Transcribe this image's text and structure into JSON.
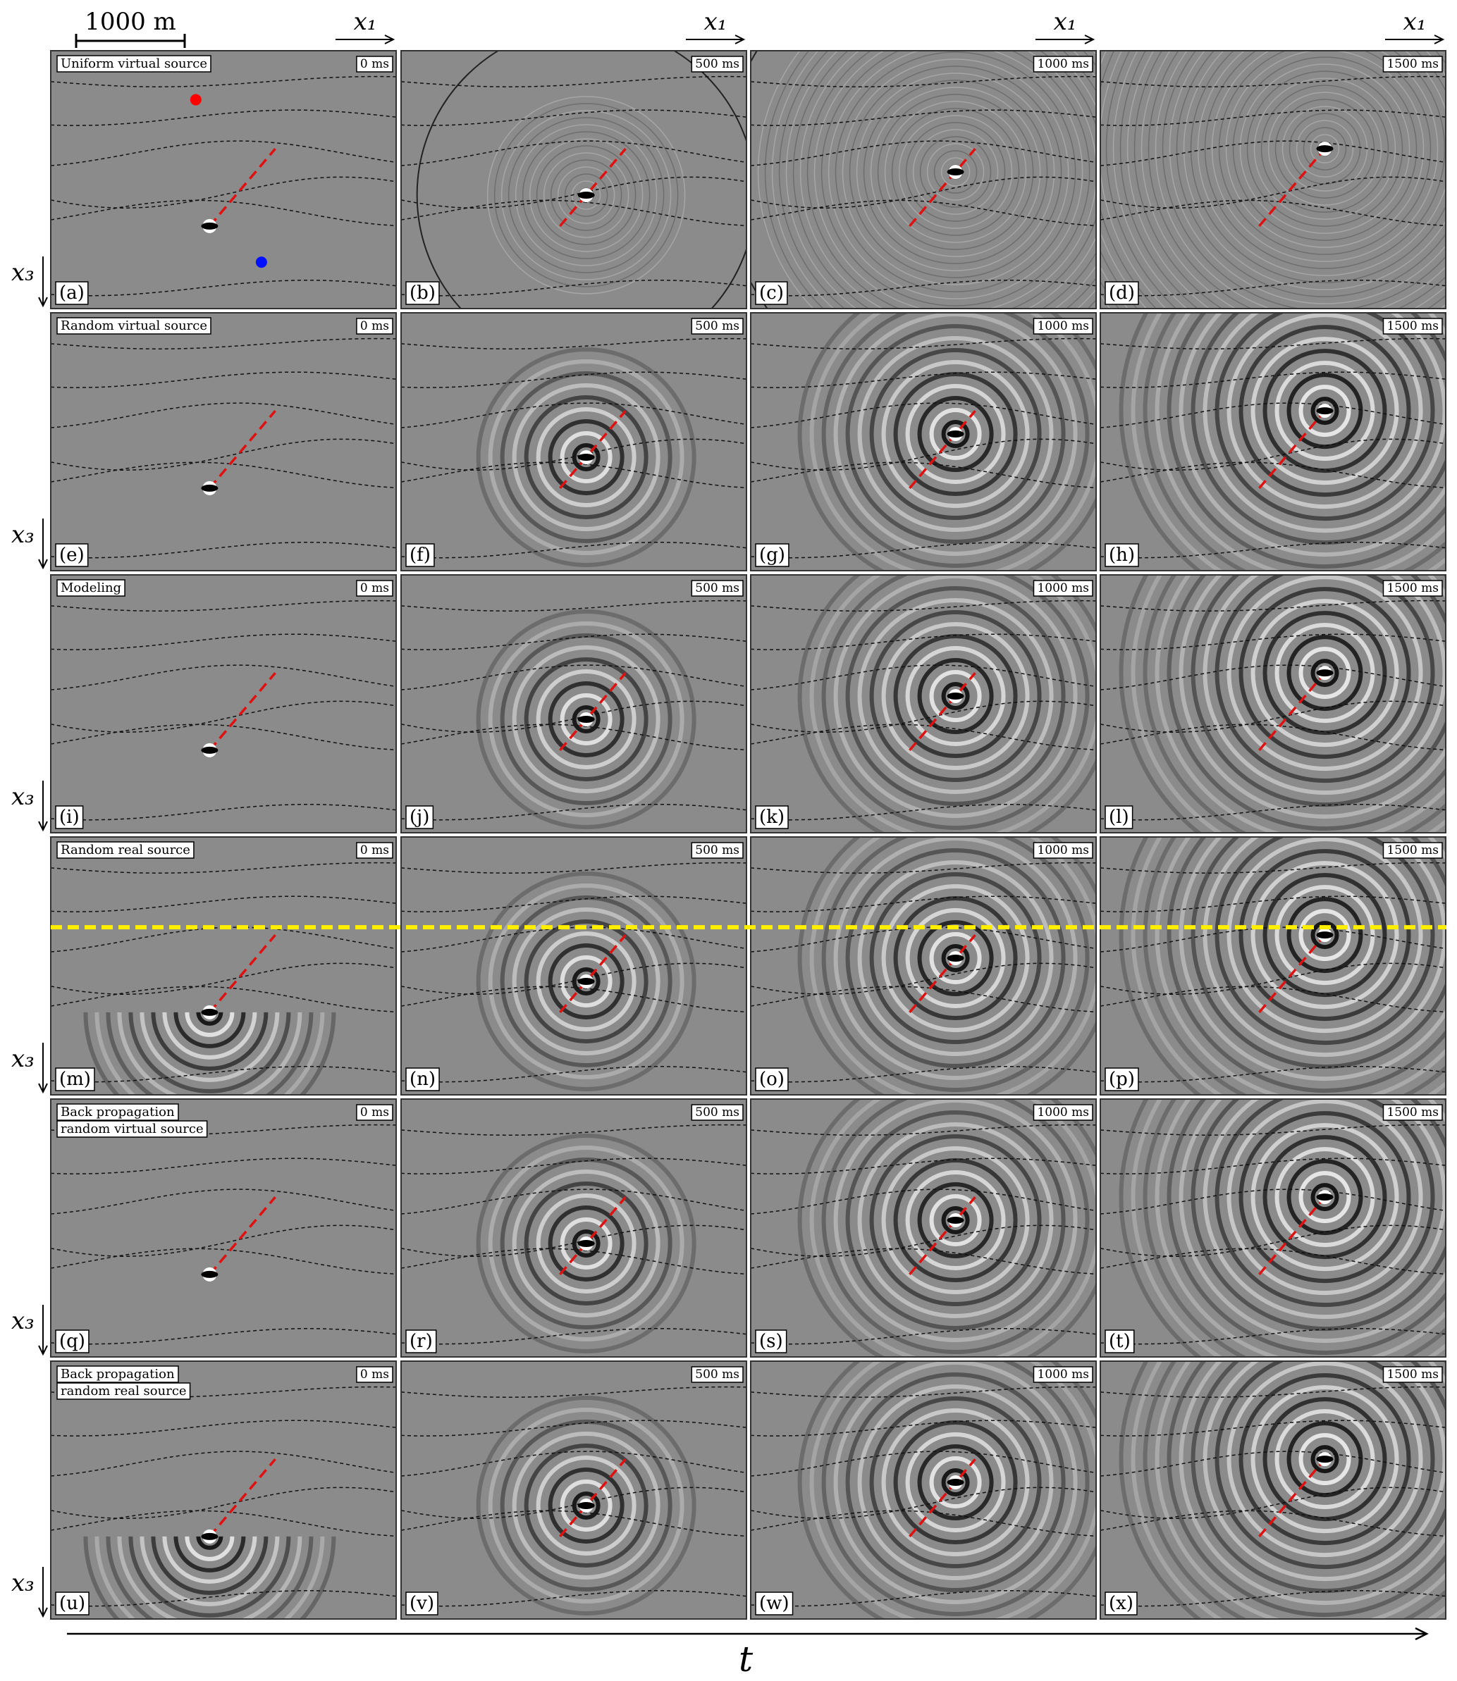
{
  "scale_bar": "1000 m",
  "x_axis_label": "x₁",
  "z_axis_label": "x₃",
  "time_axis_label": "t",
  "times": [
    "0 ms",
    "500 ms",
    "1000 ms",
    "1500 ms"
  ],
  "rows": [
    {
      "title": [
        "Uniform virtual source"
      ],
      "panels": [
        "(a)",
        "(b)",
        "(c)",
        "(d)"
      ]
    },
    {
      "title": [
        "Random virtual source"
      ],
      "panels": [
        "(e)",
        "(f)",
        "(g)",
        "(h)"
      ]
    },
    {
      "title": [
        "Modeling"
      ],
      "panels": [
        "(i)",
        "(j)",
        "(k)",
        "(l)"
      ]
    },
    {
      "title": [
        "Random real source"
      ],
      "panels": [
        "(m)",
        "(n)",
        "(o)",
        "(p)"
      ]
    },
    {
      "title": [
        "Back propagation",
        "random virtual source"
      ],
      "panels": [
        "(q)",
        "(r)",
        "(s)",
        "(t)"
      ]
    },
    {
      "title": [
        "Back propagation",
        "random real source"
      ],
      "panels": [
        "(u)",
        "(v)",
        "(w)",
        "(x)"
      ]
    }
  ]
}
